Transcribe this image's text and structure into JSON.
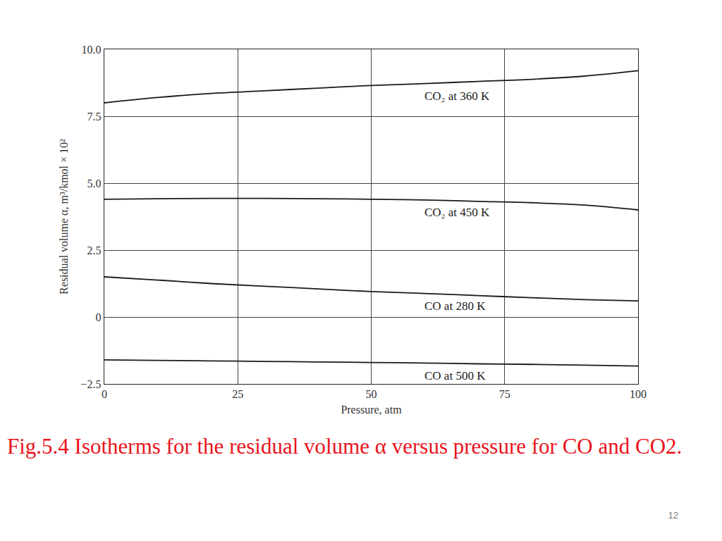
{
  "chart_data": {
    "type": "line",
    "x_label": "Pressure, atm",
    "y_label": "Residual volume α, m³/kmol × 10²",
    "x": [
      0,
      10,
      20,
      30,
      40,
      50,
      60,
      70,
      80,
      90,
      100
    ],
    "series": [
      {
        "name": "CO₂ at 360 K",
        "color": "#1a1a1a",
        "values": [
          8.0,
          8.2,
          8.35,
          8.45,
          8.55,
          8.65,
          8.72,
          8.8,
          8.88,
          9.0,
          9.2
        ]
      },
      {
        "name": "CO₂ at 450 K",
        "color": "#1a1a1a",
        "values": [
          4.4,
          4.42,
          4.43,
          4.43,
          4.42,
          4.4,
          4.37,
          4.32,
          4.27,
          4.18,
          4.0
        ]
      },
      {
        "name": "CO at 280 K",
        "color": "#1a1a1a",
        "values": [
          1.5,
          1.38,
          1.25,
          1.15,
          1.05,
          0.95,
          0.88,
          0.8,
          0.72,
          0.65,
          0.6
        ]
      },
      {
        "name": "CO at 500 K",
        "color": "#1a1a1a",
        "values": [
          -1.6,
          -1.62,
          -1.64,
          -1.66,
          -1.68,
          -1.7,
          -1.72,
          -1.75,
          -1.77,
          -1.8,
          -1.83
        ]
      }
    ],
    "xlim": [
      0,
      100
    ],
    "xticks": [
      0,
      25,
      50,
      75,
      100
    ],
    "ylim": [
      -2.5,
      10
    ],
    "yticks": [
      {
        "value": -2.5,
        "label": "−2.5"
      },
      0,
      2.5,
      {
        "value": 5,
        "label": "5.0"
      },
      7.5,
      {
        "value": 10,
        "label": "10.0"
      }
    ],
    "grid": true
  },
  "caption": "Fig.5.4  Isotherms for the residual volume α versus pressure for CO and CO2.",
  "page_number": "12"
}
